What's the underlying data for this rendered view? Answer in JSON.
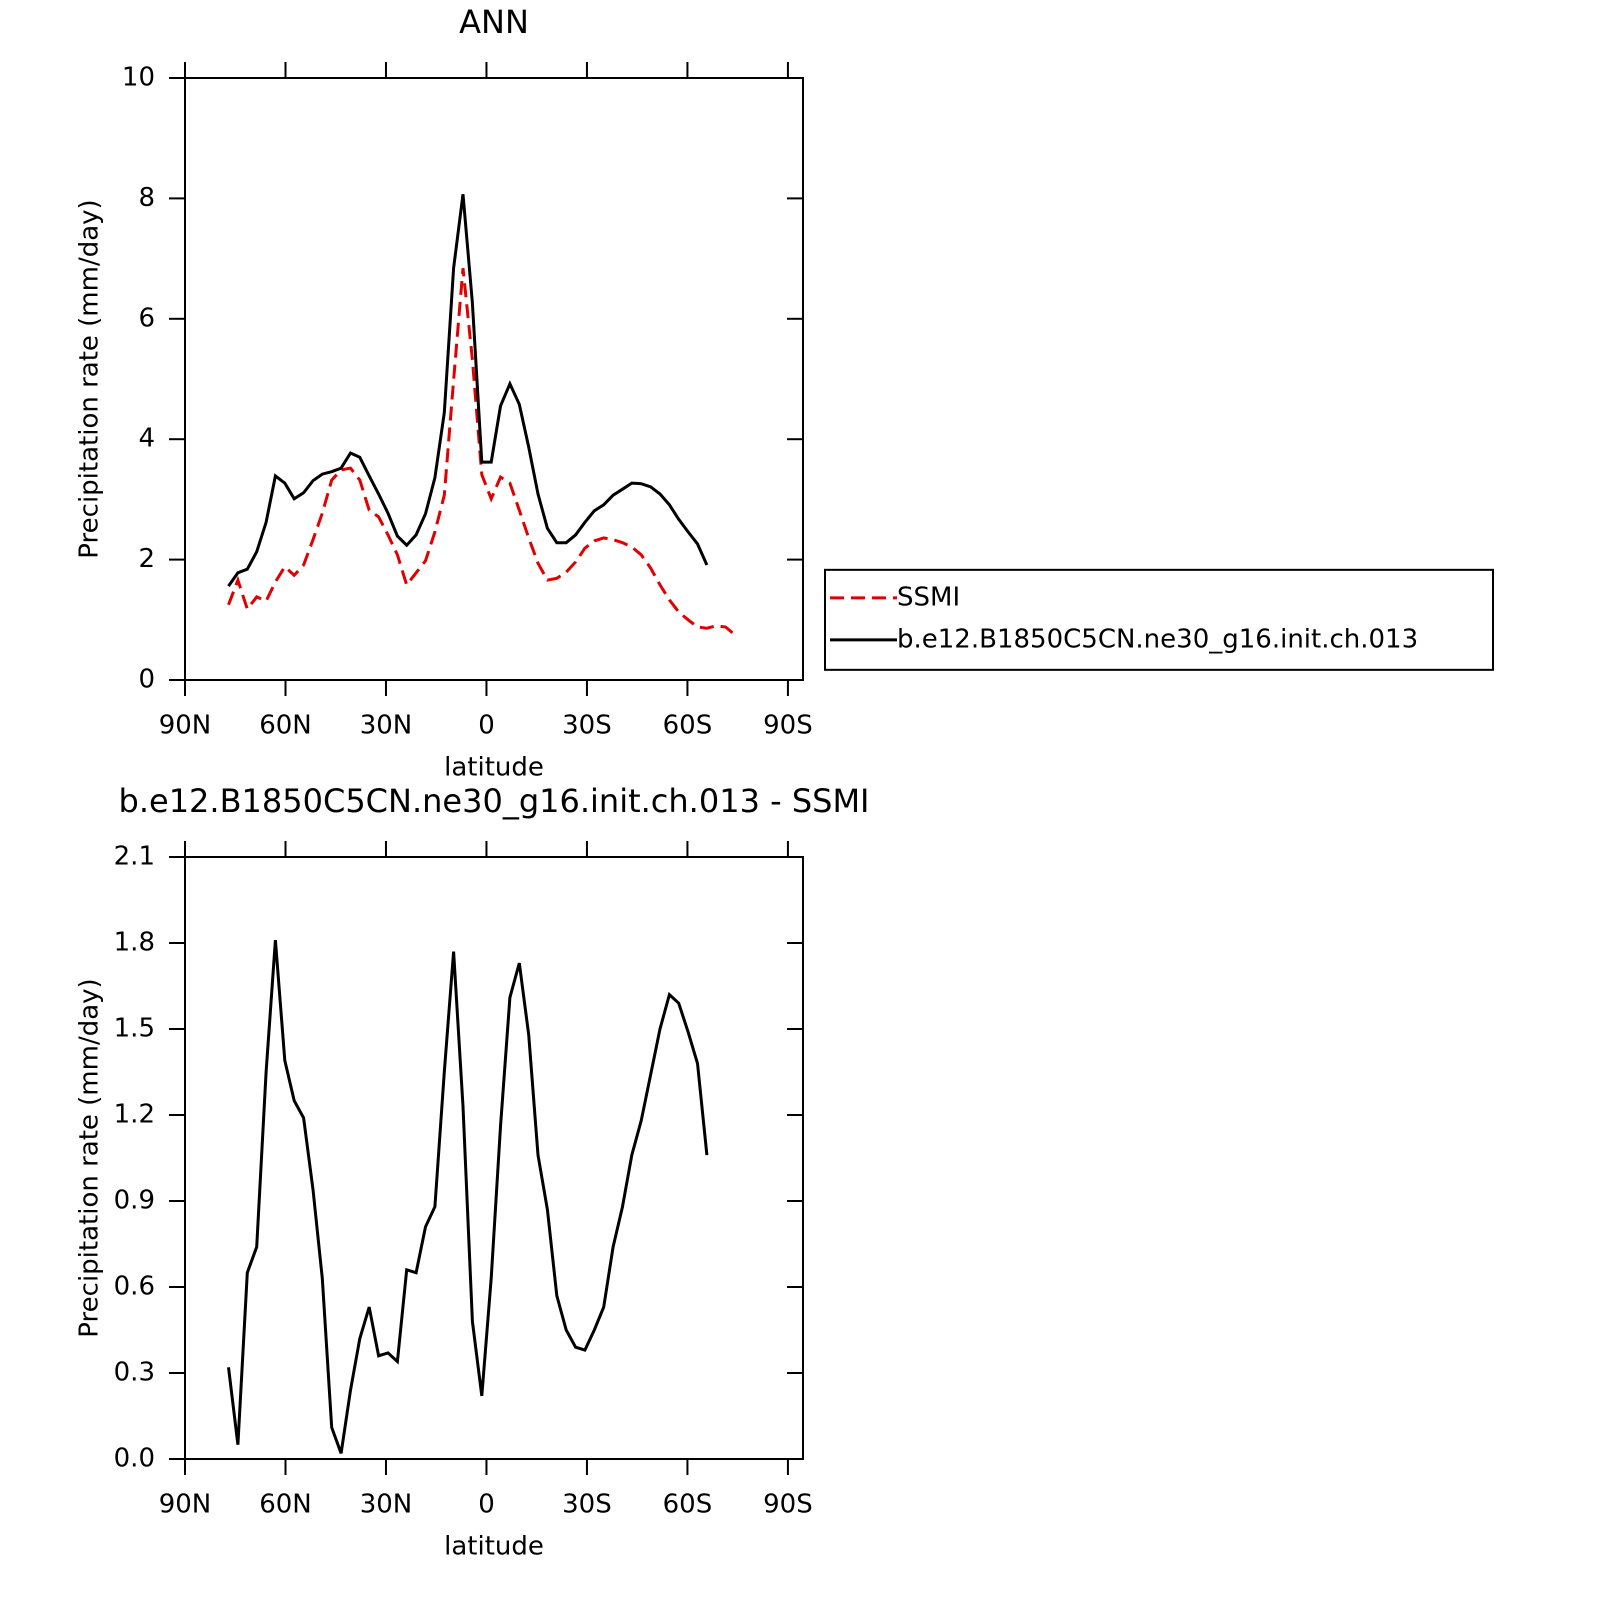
{
  "chart_data": [
    {
      "type": "line",
      "title": "ANN",
      "xlabel": "latitude",
      "ylabel": "Precipitation rate (mm/day)",
      "x": [
        77,
        74.2,
        71.4,
        68.6,
        65.8,
        63,
        60.2,
        57.4,
        54.6,
        51.8,
        49,
        46.2,
        43.4,
        40.6,
        37.8,
        35,
        32.2,
        29.4,
        26.6,
        23.8,
        21,
        18.2,
        15.4,
        12.6,
        9.8,
        7,
        4.2,
        1.4,
        -1.4,
        -4.2,
        -7,
        -9.8,
        -12.6,
        -15.4,
        -18.2,
        -21,
        -23.8,
        -26.6,
        -29.4,
        -32.2,
        -35,
        -37.8,
        -40.6,
        -43.4,
        -46.2,
        -49,
        -51.8,
        -54.6,
        -57.4,
        -60.2,
        -63,
        -65.8,
        -68.6,
        -71.4,
        -74.2
      ],
      "series": [
        {
          "name": "SSMI",
          "color": "#e00000",
          "dash": true,
          "values": [
            1.25,
            1.66,
            1.18,
            1.38,
            1.31,
            1.63,
            1.88,
            1.74,
            1.91,
            2.33,
            2.77,
            3.32,
            3.49,
            3.52,
            3.32,
            2.82,
            2.71,
            2.41,
            2.08,
            1.58,
            1.78,
            1.98,
            2.46,
            3.07,
            4.98,
            6.84,
            5.32,
            3.41,
            3.01,
            3.37,
            3.27,
            2.82,
            2.36,
            1.94,
            1.66,
            1.69,
            1.79,
            1.96,
            2.19,
            2.31,
            2.36,
            2.33,
            2.28,
            2.21,
            2.08,
            1.86,
            1.58,
            1.33,
            1.13,
            1.0,
            0.88,
            0.86,
            0.9,
            0.88,
            0.75
          ]
        },
        {
          "name": "b.e12.B1850C5CN.ne30_g16.init.ch.013",
          "color": "#000000",
          "dash": false,
          "values": [
            1.56,
            1.78,
            1.84,
            2.13,
            2.62,
            3.39,
            3.27,
            3.01,
            3.11,
            3.31,
            3.42,
            3.46,
            3.52,
            3.77,
            3.7,
            3.39,
            3.09,
            2.77,
            2.39,
            2.24,
            2.41,
            2.76,
            3.36,
            4.44,
            6.84,
            8.07,
            6.26,
            3.62,
            3.62,
            4.55,
            4.92,
            4.58,
            3.87,
            3.09,
            2.52,
            2.28,
            2.28,
            2.41,
            2.62,
            2.81,
            2.91,
            3.07,
            3.17,
            3.27,
            3.26,
            3.21,
            3.09,
            2.91,
            2.67,
            2.46,
            2.26,
            1.91,
            null,
            null,
            null
          ]
        }
      ],
      "xlim": [
        90,
        -94.5
      ],
      "xticks": [
        {
          "value": 90,
          "label": "90N"
        },
        {
          "value": 60,
          "label": "60N"
        },
        {
          "value": 30,
          "label": "30N"
        },
        0,
        {
          "value": -30,
          "label": "30S"
        },
        {
          "value": -60,
          "label": "60S"
        },
        {
          "value": -90,
          "label": "90S"
        }
      ],
      "ylim": [
        0,
        10
      ],
      "yticks": [
        0,
        2,
        4,
        6,
        8,
        10
      ],
      "legend": "right"
    },
    {
      "type": "line",
      "title": "b.e12.B1850C5CN.ne30_g16.init.ch.013 - SSMI",
      "xlabel": "latitude",
      "ylabel": "Precipitation rate (mm/day)",
      "x": [
        77,
        74.2,
        71.4,
        68.6,
        65.8,
        63,
        60.2,
        57.4,
        54.6,
        51.8,
        49,
        46.2,
        43.4,
        40.6,
        37.8,
        35,
        32.2,
        29.4,
        26.6,
        23.8,
        21,
        18.2,
        15.4,
        12.6,
        9.8,
        7,
        4.2,
        1.4,
        -1.4,
        -4.2,
        -7,
        -9.8,
        -12.6,
        -15.4,
        -18.2,
        -21,
        -23.8,
        -26.6,
        -29.4,
        -32.2,
        -35,
        -37.8,
        -40.6,
        -43.4,
        -46.2,
        -49,
        -51.8,
        -54.6,
        -57.4,
        -60.2,
        -63,
        -65.8
      ],
      "series": [
        {
          "color": "#000000",
          "dash": false,
          "values": [
            0.32,
            0.05,
            0.65,
            0.74,
            1.35,
            1.81,
            1.39,
            1.25,
            1.19,
            0.94,
            0.63,
            0.11,
            0.02,
            0.24,
            0.42,
            0.53,
            0.36,
            0.37,
            0.34,
            0.66,
            0.65,
            0.81,
            0.88,
            1.35,
            1.77,
            1.23,
            0.48,
            0.22,
            0.63,
            1.16,
            1.61,
            1.73,
            1.48,
            1.06,
            0.87,
            0.57,
            0.45,
            0.39,
            0.38,
            0.45,
            0.53,
            0.74,
            0.88,
            1.06,
            1.18,
            1.34,
            1.5,
            1.62,
            1.59,
            1.49,
            1.38,
            1.06
          ]
        }
      ],
      "xlim": [
        90,
        -94.5
      ],
      "xticks": [
        {
          "value": 90,
          "label": "90N"
        },
        {
          "value": 60,
          "label": "60N"
        },
        {
          "value": 30,
          "label": "30N"
        },
        0,
        {
          "value": -30,
          "label": "30S"
        },
        {
          "value": -60,
          "label": "60S"
        },
        {
          "value": -90,
          "label": "90S"
        }
      ],
      "ylim": [
        0,
        2.1
      ],
      "yticks": [
        {
          "value": 0,
          "label": "0.0"
        },
        0.3,
        0.6,
        0.9,
        1.2,
        1.5,
        1.8,
        2.1
      ]
    }
  ]
}
